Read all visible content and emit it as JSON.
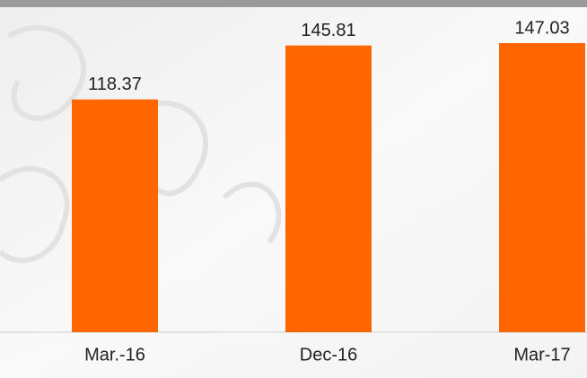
{
  "chart_data": {
    "type": "bar",
    "categories": [
      "Mar.-16",
      "Dec-16",
      "Mar-17"
    ],
    "values": [
      118.37,
      145.81,
      147.03
    ],
    "color": "#ff6600"
  }
}
